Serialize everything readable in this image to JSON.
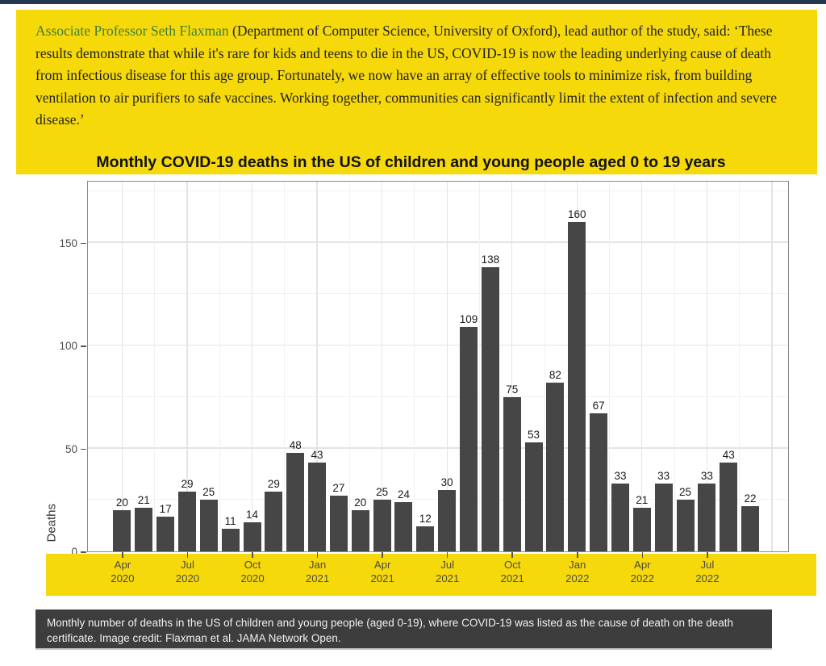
{
  "page": {
    "top_accent_color": "#24384E",
    "background": "#ffffff",
    "highlight_yellow": "#F6D90B"
  },
  "quote": {
    "link_text": "Associate Professor Seth Flaxman",
    "link_color": "#3D7E3D",
    "body": " (Department of Computer Science, University of Oxford), lead author of the study, said: ‘These results demonstrate that while it's rare for kids and teens to die in the US, COVID-19 is now the leading underlying cause of death from infectious disease for this age group. Fortunately, we now have an array of effective tools to minimize risk, from building ventilation to air purifiers to safe vaccines. Working together, communities can significantly limit the extent of infection and severe disease.’"
  },
  "chart_data": {
    "type": "bar",
    "title": "Monthly COVID-19 deaths in the US of children and young people aged 0 to 19 years",
    "xlabel": "",
    "ylabel": "Deaths",
    "categories": [
      "Apr 2020",
      "May 2020",
      "Jun 2020",
      "Jul 2020",
      "Aug 2020",
      "Sep 2020",
      "Oct 2020",
      "Nov 2020",
      "Dec 2020",
      "Jan 2021",
      "Feb 2021",
      "Mar 2021",
      "Apr 2021",
      "May 2021",
      "Jun 2021",
      "Jul 2021",
      "Aug 2021",
      "Sep 2021",
      "Oct 2021",
      "Nov 2021",
      "Dec 2021",
      "Jan 2022",
      "Feb 2022",
      "Mar 2022",
      "Apr 2022",
      "May 2022",
      "Jun 2022",
      "Jul 2022",
      "Aug 2022",
      "Sep 2022"
    ],
    "values": [
      20,
      21,
      17,
      29,
      25,
      11,
      14,
      29,
      48,
      43,
      27,
      20,
      25,
      24,
      12,
      30,
      109,
      138,
      75,
      53,
      82,
      160,
      67,
      33,
      21,
      33,
      25,
      33,
      43,
      22
    ],
    "y_ticks": [
      0,
      50,
      100,
      150
    ],
    "ylim": [
      0,
      179
    ],
    "x_tick_positions": [
      0,
      3,
      6,
      9,
      12,
      15,
      18,
      21,
      24,
      27
    ],
    "x_tick_labels": [
      [
        "Apr",
        "2020"
      ],
      [
        "Jul",
        "2020"
      ],
      [
        "Oct",
        "2020"
      ],
      [
        "Jan",
        "2021"
      ],
      [
        "Apr",
        "2021"
      ],
      [
        "Jul",
        "2021"
      ],
      [
        "Oct",
        "2021"
      ],
      [
        "Jan",
        "2022"
      ],
      [
        "Apr",
        "2022"
      ],
      [
        "Jul",
        "2022"
      ]
    ],
    "bar_color": "#464646",
    "panel_border_color": "#8A8A8A",
    "grid": true,
    "grid_major_color": "#E4E4E4",
    "grid_minor_color": "#F1F1F1",
    "legend": false
  },
  "caption": {
    "background": "#3D3D3D",
    "text_color": "#F0F0F0",
    "text": "Monthly number of deaths in the US of children and young people (aged 0-19), where COVID-19 was listed as the cause of death on the death certificate. Image credit: Flaxman et al. JAMA Network Open."
  }
}
